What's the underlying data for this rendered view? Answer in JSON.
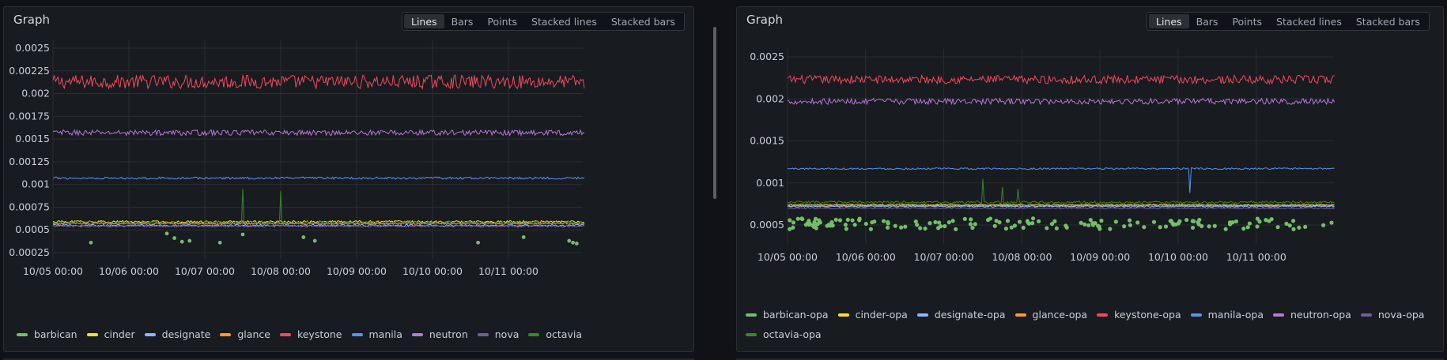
{
  "colors": {
    "barbican": "#73bf69",
    "cinder": "#fade2a",
    "designate": "#8ab8ff",
    "glance": "#ff9830",
    "keystone": "#f2495c",
    "manila": "#5794f2",
    "neutron": "#b877d9",
    "nova": "#705da0",
    "octavia": "#37872d"
  },
  "panels": [
    {
      "title": "Graph",
      "modes": [
        "Lines",
        "Bars",
        "Points",
        "Stacked lines",
        "Stacked bars"
      ],
      "active_mode": "Lines",
      "legend": [
        "barbican",
        "cinder",
        "designate",
        "glance",
        "keystone",
        "manila",
        "neutron",
        "nova",
        "octavia"
      ]
    },
    {
      "title": "Graph",
      "modes": [
        "Lines",
        "Bars",
        "Points",
        "Stacked lines",
        "Stacked bars"
      ],
      "active_mode": "Lines",
      "legend": [
        "barbican-opa",
        "cinder-opa",
        "designate-opa",
        "glance-opa",
        "keystone-opa",
        "manila-opa",
        "neutron-opa",
        "nova-opa",
        "octavia-opa"
      ]
    }
  ],
  "chart_data": [
    {
      "type": "line",
      "title": "Graph",
      "x_ticks": [
        "10/05 00:00",
        "10/06 00:00",
        "10/07 00:00",
        "10/08 00:00",
        "10/09 00:00",
        "10/10 00:00",
        "10/11 00:00"
      ],
      "y_ticks": [
        "0.0025",
        "0.00225",
        "0.002",
        "0.00175",
        "0.0015",
        "0.00125",
        "0.001",
        "0.00075",
        "0.0005",
        "0.00025"
      ],
      "xlim": [
        "10/05 00:00",
        "10/12 00:00"
      ],
      "ylim": [
        0.00018,
        0.0025
      ],
      "grid": true,
      "legend_position": "bottom",
      "series": [
        {
          "name": "keystone",
          "style": "line",
          "mean": 0.00213,
          "noise": 7.5e-05
        },
        {
          "name": "neutron",
          "style": "line",
          "mean": 0.00157,
          "noise": 3e-05
        },
        {
          "name": "manila",
          "style": "line",
          "mean": 0.00107,
          "noise": 1.2e-05
        },
        {
          "name": "cinder",
          "style": "line",
          "mean": 0.00059,
          "noise": 1.2e-05
        },
        {
          "name": "octavia",
          "style": "line",
          "mean": 0.00058,
          "noise": 1.5e-05,
          "spikes": [
            [
              2.5,
              0.00095
            ],
            [
              3.0,
              0.00093
            ]
          ]
        },
        {
          "name": "glance",
          "style": "line",
          "mean": 0.00057,
          "noise": 1e-05
        },
        {
          "name": "designate",
          "style": "line",
          "mean": 0.00055,
          "noise": 1e-05
        },
        {
          "name": "nova",
          "style": "line",
          "mean": 0.00054,
          "noise": 1e-05
        },
        {
          "name": "barbican",
          "style": "points",
          "points": [
            [
              0.5,
              0.00036
            ],
            [
              1.5,
              0.00046
            ],
            [
              1.6,
              0.00041
            ],
            [
              1.7,
              0.00037
            ],
            [
              1.8,
              0.00038
            ],
            [
              2.2,
              0.00036
            ],
            [
              2.5,
              0.00045
            ],
            [
              3.3,
              0.00042
            ],
            [
              3.45,
              0.00038
            ],
            [
              5.6,
              0.00036
            ],
            [
              6.2,
              0.00042
            ],
            [
              6.8,
              0.00038
            ],
            [
              6.85,
              0.00036
            ],
            [
              6.9,
              0.00035
            ]
          ]
        }
      ]
    },
    {
      "type": "line",
      "title": "Graph",
      "x_ticks": [
        "10/05 00:00",
        "10/06 00:00",
        "10/07 00:00",
        "10/08 00:00",
        "10/09 00:00",
        "10/10 00:00",
        "10/11 00:00"
      ],
      "y_ticks": [
        "0.0025",
        "0.002",
        "0.0015",
        "0.001",
        "0.0005"
      ],
      "xlim": [
        "10/05 00:00",
        "10/12 00:00"
      ],
      "ylim": [
        0.00035,
        0.0026
      ],
      "grid": true,
      "legend_position": "bottom",
      "series": [
        {
          "name": "keystone-opa",
          "style": "line",
          "mean": 0.00223,
          "noise": 5e-05
        },
        {
          "name": "neutron-opa",
          "style": "line",
          "mean": 0.00197,
          "noise": 3.5e-05
        },
        {
          "name": "manila-opa",
          "style": "line",
          "mean": 0.00117,
          "noise": 1e-05,
          "spikes": [
            [
              5.15,
              0.00088
            ]
          ]
        },
        {
          "name": "octavia-opa",
          "style": "line",
          "mean": 0.00077,
          "noise": 1.5e-05,
          "spikes": [
            [
              2.5,
              0.00105
            ],
            [
              2.75,
              0.00095
            ],
            [
              2.95,
              0.00093
            ]
          ]
        },
        {
          "name": "cinder-opa",
          "style": "line",
          "mean": 0.00074,
          "noise": 8e-06
        },
        {
          "name": "glance-opa",
          "style": "line",
          "mean": 0.00073,
          "noise": 8e-06
        },
        {
          "name": "designate-opa",
          "style": "line",
          "mean": 0.00072,
          "noise": 8e-06
        },
        {
          "name": "nova-opa",
          "style": "line",
          "mean": 0.0007,
          "noise": 8e-06
        },
        {
          "name": "barbican-opa",
          "style": "points",
          "band": [
            0.00045,
            0.00058
          ]
        }
      ]
    }
  ]
}
